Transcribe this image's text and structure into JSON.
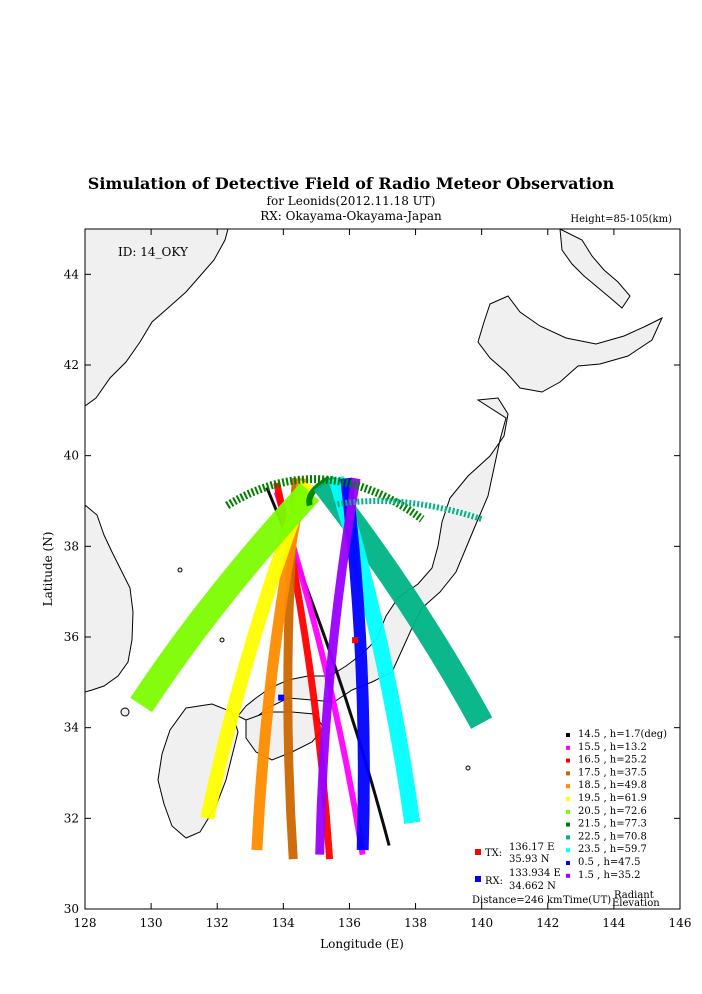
{
  "title": "Simulation of Detective Field of Radio Meteor Observation",
  "subtitle": "for Leonids(2012.11.18 UT)",
  "receiver_line": "RX: Okayama-Okayama-Japan",
  "height_note": "Height=85-105(km)",
  "station_id": "ID: 14_OKY",
  "tx": {
    "label": "TX:",
    "lon": "136.17 E",
    "lat": "35.93 N",
    "lon_val": 136.17,
    "lat_val": 35.93,
    "color": "#ff0000"
  },
  "rx": {
    "label": "RX:",
    "lon": "133.934 E",
    "lat": "34.662 N",
    "lon_val": 133.934,
    "lat_val": 34.662,
    "color": "#0000ff"
  },
  "distance": "Distance=246 km",
  "legend_footer": {
    "time": "Time(UT)",
    "radiant": "Radiant",
    "elevation": "Elevation"
  },
  "chart_data": {
    "type": "map",
    "xlabel": "Longitude (E)",
    "ylabel": "Latitude (N)",
    "xlim": [
      128,
      146
    ],
    "ylim": [
      30,
      45
    ],
    "xticks": [
      "128",
      "130",
      "132",
      "134",
      "136",
      "138",
      "140",
      "142",
      "144",
      "146"
    ],
    "yticks": [
      "30",
      "32",
      "34",
      "36",
      "38",
      "40",
      "42",
      "44"
    ],
    "series": [
      {
        "time": "14.5",
        "elev": "h=1.7(deg)",
        "label": "14.5 ,  h=1.7(deg)",
        "color": "#000000",
        "bottom": [
          137.2,
          31.4
        ],
        "top": [
          133.5,
          39.3
        ],
        "width": 3
      },
      {
        "time": "15.5",
        "elev": "h=13.2",
        "label": "15.5 ,  h=13.2",
        "color": "#ff00ff",
        "bottom": [
          136.4,
          31.2
        ],
        "top": [
          133.8,
          39.2
        ],
        "width": 6
      },
      {
        "time": "16.5",
        "elev": "h=25.2",
        "label": "16.5 ,  h=25.2",
        "color": "#ff0000",
        "bottom": [
          135.4,
          31.1
        ],
        "top": [
          133.8,
          39.4
        ],
        "width": 7
      },
      {
        "time": "17.5",
        "elev": "h=37.5",
        "label": "17.5 ,  h=37.5",
        "color": "#cc6600",
        "bottom": [
          134.3,
          31.1
        ],
        "top": [
          134.4,
          39.5
        ],
        "width": 9
      },
      {
        "time": "18.5",
        "elev": "h=49.8",
        "label": "18.5 ,  h=49.8",
        "color": "#ff8c00",
        "bottom": [
          133.2,
          31.3
        ],
        "top": [
          134.6,
          39.5
        ],
        "width": 11
      },
      {
        "time": "19.5",
        "elev": "h=61.9",
        "label": "19.5 ,  h=61.9",
        "color": "#ffff00",
        "bottom": [
          131.7,
          32.0
        ],
        "top": [
          134.7,
          39.4
        ],
        "width": 14
      },
      {
        "time": "20.5",
        "elev": "h=72.6",
        "label": "20.5 ,  h=72.6",
        "color": "#7cfc00",
        "bottom": [
          129.7,
          34.5
        ],
        "top": [
          134.8,
          39.2
        ],
        "width": 26
      },
      {
        "time": "21.5",
        "elev": "h=77.3",
        "label": "21.5 ,  h=77.3",
        "color": "#008000",
        "bottom": [
          134.8,
          38.9
        ],
        "top": [
          135.4,
          39.5
        ],
        "width": 6
      },
      {
        "time": "22.5",
        "elev": "h=70.8",
        "label": "22.5 ,  h=70.8",
        "color": "#00b386",
        "bottom": [
          140.0,
          34.1
        ],
        "top": [
          135.2,
          39.4
        ],
        "width": 24
      },
      {
        "time": "23.5",
        "elev": "h=59.7",
        "label": "23.5 ,  h=59.7",
        "color": "#00ffff",
        "bottom": [
          137.9,
          31.9
        ],
        "top": [
          135.6,
          39.5
        ],
        "width": 16
      },
      {
        "time": "0.5",
        "elev": "h=47.5",
        "label": "0.5  ,  h=47.5",
        "color": "#0000ff",
        "bottom": [
          136.4,
          31.3
        ],
        "top": [
          135.9,
          39.5
        ],
        "width": 12
      },
      {
        "time": "1.5",
        "elev": "h=35.2",
        "label": "1.5  ,  h=35.2",
        "color": "#9900ff",
        "bottom": [
          135.1,
          31.2
        ],
        "top": [
          136.2,
          39.5
        ],
        "width": 9
      }
    ]
  }
}
